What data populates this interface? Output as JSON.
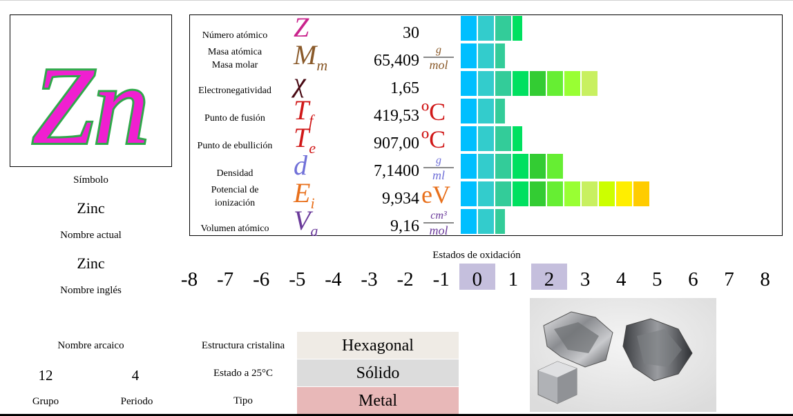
{
  "element": {
    "symbol": "Zn",
    "symbol_label": "Símbolo",
    "current_name": "Zinc",
    "current_name_label": "Nombre actual",
    "english_name": "Zinc",
    "english_name_label": "Nombre inglés",
    "archaic_name_label": "Nombre arcaico",
    "group": "12",
    "group_label": "Grupo",
    "period": "4",
    "period_label": "Periodo"
  },
  "properties": [
    {
      "name": "Número atómico",
      "symbol": "Z",
      "value": "30",
      "unit": "",
      "bar_segments": 4,
      "color": "#c9238c"
    },
    {
      "name": "Masa atómica\nMasa molar",
      "symbol": "M",
      "subscript": "m",
      "value": "65,409",
      "unit_num": "g",
      "unit_den": "mol",
      "bar_segments": 3,
      "color": "#8a5a2a"
    },
    {
      "name": "Electronegatividad",
      "symbol": "χ",
      "value": "1,65",
      "unit": "",
      "bar_segments": 8,
      "color": "#4a0a14"
    },
    {
      "name": "Punto de fusión",
      "symbol": "T",
      "subscript": "f",
      "value": "419,53",
      "unit": "ºC",
      "bar_segments": 3,
      "color": "#d01818"
    },
    {
      "name": "Punto de ebullición",
      "symbol": "T",
      "subscript": "e",
      "value": "907,00",
      "unit": "ºC",
      "bar_segments": 4,
      "color": "#d01818"
    },
    {
      "name": "Densidad",
      "symbol": "d",
      "value": "7,1400",
      "unit_num": "g",
      "unit_den": "ml",
      "bar_segments": 6,
      "color": "#7070d8"
    },
    {
      "name": "Potencial de\nionización",
      "symbol": "E",
      "subscript": "i",
      "value": "9,934",
      "unit": "eV",
      "bar_segments": 11,
      "color": "#e8701c"
    },
    {
      "name": "Volumen atómico",
      "symbol": "V",
      "subscript": "a",
      "value": "9,16",
      "unit_num": "cm³",
      "unit_den": "mol",
      "bar_segments": 3,
      "color": "#6a3a9a"
    }
  ],
  "bar_colors": [
    "#00bfff",
    "#33cccc",
    "#33cc99",
    "#00e060",
    "#33cc33",
    "#66ee33",
    "#99ff33",
    "#c8f060",
    "#ccff00",
    "#ffee00",
    "#ffcc00"
  ],
  "oxidation": {
    "title": "Estados de oxidación",
    "states": [
      "-8",
      "-7",
      "-6",
      "-5",
      "-4",
      "-3",
      "-2",
      "-1",
      "0",
      "1",
      "2",
      "3",
      "4",
      "5",
      "6",
      "7",
      "8"
    ],
    "active": [
      "0",
      "2"
    ]
  },
  "structure": {
    "crystal_label": "Estructura cristalina",
    "crystal_value": "Hexagonal",
    "state_label": "Estado a 25°C",
    "state_value": "Sólido",
    "type_label": "Tipo",
    "type_value": "Metal",
    "colors": {
      "crystal": "#efebe5",
      "state": "#dcdcdc",
      "type": "#e8b8b8"
    }
  }
}
